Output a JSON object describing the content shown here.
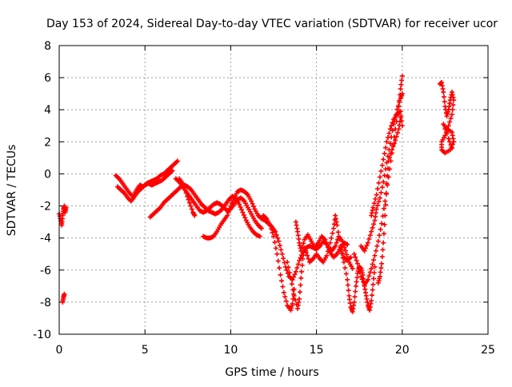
{
  "chart_data": {
    "type": "scatter",
    "title": "Day 153 of 2024, Sidereal Day-to-day VTEC variation (SDTVAR) for receiver ucor",
    "xlabel": "GPS time / hours",
    "ylabel": "SDTVAR / TECUs",
    "xlim": [
      0,
      25
    ],
    "ylim": [
      -10,
      8
    ],
    "x_ticks": [
      "0",
      "5",
      "10",
      "15",
      "20",
      "25"
    ],
    "y_ticks": [
      "-10",
      "-8",
      "-6",
      "-4",
      "-2",
      "0",
      "2",
      "4",
      "6",
      "8"
    ],
    "grid": true,
    "legend": "none",
    "marker": "plus",
    "marker_color": "#ff0000",
    "segments": [
      [
        [
          0.0,
          -2.5
        ],
        [
          0.1,
          -2.9
        ],
        [
          0.15,
          -3.2
        ],
        [
          0.2,
          -2.6
        ],
        [
          0.25,
          -2.2
        ],
        [
          0.3,
          -2.0
        ],
        [
          0.35,
          -2.4
        ],
        [
          0.4,
          -2.1
        ]
      ],
      [
        [
          0.2,
          -8.0
        ],
        [
          0.25,
          -7.7
        ],
        [
          0.3,
          -7.5
        ]
      ],
      [
        [
          3.3,
          -0.1
        ],
        [
          3.5,
          -0.3
        ],
        [
          3.7,
          -0.6
        ],
        [
          3.9,
          -0.9
        ],
        [
          4.1,
          -1.2
        ],
        [
          4.3,
          -1.4
        ],
        [
          4.5,
          -1.0
        ],
        [
          4.7,
          -0.7
        ],
        [
          4.9,
          -0.8
        ],
        [
          5.1,
          -0.6
        ],
        [
          5.3,
          -0.5
        ],
        [
          5.5,
          -0.4
        ],
        [
          5.7,
          -0.3
        ],
        [
          5.9,
          -0.1
        ],
        [
          6.1,
          0.0
        ],
        [
          6.3,
          0.2
        ],
        [
          6.5,
          0.4
        ],
        [
          6.7,
          0.6
        ],
        [
          6.9,
          0.8
        ]
      ],
      [
        [
          3.4,
          -0.8
        ],
        [
          3.6,
          -1.0
        ],
        [
          3.8,
          -1.2
        ],
        [
          4.0,
          -1.5
        ],
        [
          4.2,
          -1.7
        ],
        [
          4.4,
          -1.4
        ],
        [
          4.6,
          -1.1
        ],
        [
          4.8,
          -0.9
        ],
        [
          5.0,
          -0.7
        ],
        [
          5.2,
          -0.6
        ],
        [
          5.4,
          -0.7
        ],
        [
          5.6,
          -0.6
        ],
        [
          5.8,
          -0.5
        ],
        [
          6.0,
          -0.4
        ],
        [
          6.2,
          -0.2
        ],
        [
          6.4,
          0.0
        ],
        [
          6.6,
          0.2
        ]
      ],
      [
        [
          5.3,
          -2.7
        ],
        [
          5.5,
          -2.5
        ],
        [
          5.7,
          -2.3
        ],
        [
          5.9,
          -2.1
        ],
        [
          6.1,
          -1.8
        ],
        [
          6.3,
          -1.6
        ],
        [
          6.5,
          -1.4
        ],
        [
          6.7,
          -1.2
        ],
        [
          6.9,
          -1.0
        ],
        [
          7.1,
          -0.8
        ],
        [
          7.3,
          -0.7
        ],
        [
          7.5,
          -0.8
        ],
        [
          7.7,
          -1.0
        ],
        [
          7.9,
          -1.3
        ],
        [
          8.1,
          -1.6
        ],
        [
          8.3,
          -1.9
        ],
        [
          8.5,
          -2.1
        ],
        [
          8.7,
          -2.3
        ],
        [
          8.9,
          -2.4
        ],
        [
          9.1,
          -2.5
        ],
        [
          9.3,
          -2.4
        ],
        [
          9.5,
          -2.2
        ],
        [
          9.7,
          -1.9
        ],
        [
          9.9,
          -1.6
        ],
        [
          10.1,
          -1.4
        ],
        [
          10.3,
          -1.5
        ],
        [
          10.5,
          -1.9
        ],
        [
          10.7,
          -2.4
        ],
        [
          10.9,
          -2.9
        ],
        [
          11.1,
          -3.3
        ],
        [
          11.3,
          -3.6
        ],
        [
          11.5,
          -3.8
        ],
        [
          11.7,
          -3.9
        ]
      ],
      [
        [
          6.8,
          -0.3
        ],
        [
          7.0,
          -0.5
        ],
        [
          7.2,
          -0.8
        ],
        [
          7.4,
          -1.1
        ],
        [
          7.6,
          -1.4
        ],
        [
          7.8,
          -1.7
        ],
        [
          8.0,
          -2.0
        ],
        [
          8.2,
          -2.3
        ],
        [
          8.4,
          -2.4
        ],
        [
          8.6,
          -2.3
        ],
        [
          8.8,
          -2.1
        ],
        [
          9.0,
          -1.9
        ],
        [
          9.2,
          -1.8
        ],
        [
          9.4,
          -1.9
        ],
        [
          9.6,
          -2.1
        ],
        [
          9.8,
          -2.3
        ],
        [
          10.0,
          -2.2
        ],
        [
          10.2,
          -1.9
        ],
        [
          10.4,
          -1.6
        ],
        [
          10.6,
          -1.5
        ],
        [
          10.8,
          -1.7
        ],
        [
          11.0,
          -2.1
        ],
        [
          11.2,
          -2.5
        ],
        [
          11.4,
          -2.9
        ],
        [
          11.6,
          -3.2
        ],
        [
          11.8,
          -3.4
        ]
      ],
      [
        [
          7.0,
          -0.3
        ],
        [
          7.2,
          -0.6
        ],
        [
          7.4,
          -1.2
        ],
        [
          7.6,
          -1.8
        ],
        [
          7.8,
          -2.4
        ],
        [
          7.9,
          -2.6
        ]
      ],
      [
        [
          8.4,
          -3.9
        ],
        [
          8.6,
          -4.0
        ],
        [
          8.8,
          -4.0
        ],
        [
          9.0,
          -3.9
        ],
        [
          9.2,
          -3.6
        ],
        [
          9.4,
          -3.2
        ],
        [
          9.6,
          -2.9
        ],
        [
          9.8,
          -2.6
        ],
        [
          10.0,
          -2.0
        ],
        [
          10.2,
          -1.5
        ],
        [
          10.4,
          -1.1
        ],
        [
          10.6,
          -1.0
        ],
        [
          10.8,
          -1.1
        ],
        [
          11.0,
          -1.3
        ],
        [
          11.2,
          -1.7
        ],
        [
          11.4,
          -2.2
        ],
        [
          11.6,
          -2.6
        ],
        [
          11.8,
          -2.8
        ],
        [
          12.0,
          -2.9
        ],
        [
          12.2,
          -3.1
        ],
        [
          12.4,
          -3.3
        ],
        [
          12.6,
          -3.6
        ],
        [
          12.8,
          -4.2
        ],
        [
          13.0,
          -5.0
        ],
        [
          13.2,
          -5.8
        ],
        [
          13.4,
          -6.4
        ],
        [
          13.6,
          -6.6
        ],
        [
          13.8,
          -6.1
        ],
        [
          14.0,
          -5.4
        ],
        [
          14.2,
          -4.9
        ],
        [
          14.4,
          -4.6
        ],
        [
          14.6,
          -4.5
        ],
        [
          14.8,
          -4.6
        ],
        [
          15.0,
          -4.7
        ],
        [
          15.2,
          -4.5
        ],
        [
          15.4,
          -4.2
        ],
        [
          15.6,
          -4.4
        ],
        [
          15.8,
          -4.9
        ],
        [
          16.0,
          -5.2
        ],
        [
          16.2,
          -5.0
        ],
        [
          16.4,
          -4.6
        ],
        [
          16.6,
          -4.3
        ],
        [
          16.8,
          -4.4
        ]
      ],
      [
        [
          11.9,
          -2.6
        ],
        [
          12.1,
          -2.8
        ],
        [
          12.3,
          -3.2
        ],
        [
          12.5,
          -3.9
        ],
        [
          12.7,
          -5.0
        ],
        [
          12.9,
          -6.3
        ],
        [
          13.1,
          -7.4
        ],
        [
          13.3,
          -8.2
        ],
        [
          13.5,
          -8.5
        ],
        [
          13.6,
          -8.1
        ],
        [
          13.7,
          -7.2
        ]
      ],
      [
        [
          13.3,
          -5.5
        ],
        [
          13.5,
          -6.5
        ],
        [
          13.7,
          -7.6
        ],
        [
          13.9,
          -8.4
        ],
        [
          14.0,
          -7.8
        ],
        [
          14.1,
          -6.5
        ],
        [
          14.2,
          -5.3
        ],
        [
          14.3,
          -4.6
        ],
        [
          14.4,
          -4.9
        ],
        [
          14.6,
          -5.5
        ],
        [
          14.8,
          -5.3
        ],
        [
          15.0,
          -5.0
        ],
        [
          15.2,
          -5.3
        ],
        [
          15.4,
          -5.5
        ],
        [
          15.6,
          -5.1
        ],
        [
          15.8,
          -4.3
        ],
        [
          16.0,
          -3.4
        ],
        [
          16.1,
          -2.6
        ],
        [
          16.2,
          -3.2
        ],
        [
          16.4,
          -4.5
        ],
        [
          16.6,
          -5.2
        ],
        [
          16.8,
          -5.4
        ],
        [
          17.0,
          -5.2
        ]
      ],
      [
        [
          13.8,
          -3.0
        ],
        [
          13.9,
          -3.6
        ],
        [
          14.0,
          -4.3
        ],
        [
          14.1,
          -4.8
        ],
        [
          14.3,
          -4.1
        ],
        [
          14.5,
          -3.8
        ],
        [
          14.7,
          -4.2
        ],
        [
          14.9,
          -4.6
        ],
        [
          15.1,
          -4.3
        ],
        [
          15.3,
          -3.9
        ],
        [
          15.5,
          -4.1
        ],
        [
          15.7,
          -4.6
        ],
        [
          15.9,
          -4.8
        ],
        [
          16.1,
          -4.5
        ],
        [
          16.3,
          -3.9
        ],
        [
          16.5,
          -4.2
        ],
        [
          16.7,
          -4.8
        ],
        [
          16.9,
          -5.5
        ],
        [
          17.1,
          -5.9
        ]
      ],
      [
        [
          16.4,
          -4.7
        ],
        [
          16.6,
          -5.5
        ],
        [
          16.8,
          -6.6
        ],
        [
          16.9,
          -7.6
        ],
        [
          17.0,
          -8.3
        ],
        [
          17.1,
          -8.6
        ],
        [
          17.2,
          -8.0
        ],
        [
          17.3,
          -7.0
        ],
        [
          17.4,
          -6.2
        ],
        [
          17.5,
          -5.8
        ],
        [
          17.6,
          -5.9
        ],
        [
          17.7,
          -6.3
        ],
        [
          17.8,
          -7.0
        ],
        [
          17.9,
          -7.6
        ],
        [
          18.0,
          -8.2
        ],
        [
          18.1,
          -8.5
        ],
        [
          18.2,
          -7.9
        ],
        [
          18.3,
          -6.9
        ],
        [
          18.4,
          -5.8
        ]
      ],
      [
        [
          17.2,
          -5.0
        ],
        [
          17.4,
          -5.6
        ],
        [
          17.6,
          -6.4
        ],
        [
          17.8,
          -6.9
        ],
        [
          18.0,
          -6.6
        ],
        [
          18.2,
          -5.9
        ],
        [
          18.4,
          -5.1
        ],
        [
          18.6,
          -4.2
        ],
        [
          18.8,
          -3.1
        ],
        [
          19.0,
          -1.7
        ],
        [
          19.2,
          -0.2
        ],
        [
          19.4,
          1.3
        ],
        [
          19.6,
          2.8
        ],
        [
          19.8,
          4.2
        ],
        [
          19.9,
          5.3
        ],
        [
          20.0,
          6.1
        ]
      ],
      [
        [
          17.6,
          -4.5
        ],
        [
          17.8,
          -4.8
        ],
        [
          18.0,
          -4.3
        ],
        [
          18.2,
          -3.6
        ],
        [
          18.4,
          -2.9
        ],
        [
          18.5,
          -2.2
        ],
        [
          18.7,
          -1.5
        ],
        [
          18.9,
          -0.5
        ],
        [
          19.1,
          0.7
        ],
        [
          19.3,
          1.9
        ],
        [
          19.5,
          3.1
        ],
        [
          19.7,
          4.0
        ],
        [
          19.9,
          4.7
        ],
        [
          20.0,
          5.0
        ]
      ],
      [
        [
          18.2,
          -2.6
        ],
        [
          18.3,
          -2.1
        ],
        [
          18.5,
          -1.3
        ],
        [
          18.7,
          -0.2
        ],
        [
          18.9,
          0.9
        ],
        [
          19.1,
          2.0
        ],
        [
          19.3,
          2.8
        ],
        [
          19.5,
          3.4
        ],
        [
          19.7,
          3.7
        ],
        [
          19.9,
          3.9
        ],
        [
          20.0,
          3.0
        ]
      ],
      [
        [
          18.6,
          -6.8
        ],
        [
          18.7,
          -6.4
        ],
        [
          18.8,
          -5.6
        ],
        [
          18.9,
          -4.3
        ],
        [
          19.0,
          -2.6
        ],
        [
          19.1,
          -0.6
        ],
        [
          19.2,
          0.8
        ],
        [
          19.4,
          1.5
        ],
        [
          19.6,
          2.1
        ],
        [
          19.8,
          2.8
        ],
        [
          19.9,
          3.5
        ]
      ],
      [
        [
          22.2,
          5.6
        ],
        [
          22.3,
          5.7
        ],
        [
          22.4,
          5.1
        ],
        [
          22.5,
          4.2
        ],
        [
          22.6,
          3.6
        ],
        [
          22.7,
          4.0
        ],
        [
          22.8,
          4.6
        ],
        [
          22.9,
          5.1
        ],
        [
          23.0,
          4.6
        ],
        [
          22.9,
          3.7
        ],
        [
          22.7,
          3.0
        ],
        [
          22.5,
          2.4
        ],
        [
          22.3,
          2.0
        ],
        [
          22.3,
          1.5
        ],
        [
          22.5,
          1.3
        ],
        [
          22.8,
          1.5
        ],
        [
          23.0,
          2.0
        ],
        [
          22.9,
          2.6
        ],
        [
          22.6,
          2.8
        ],
        [
          22.4,
          3.1
        ],
        [
          22.7,
          2.2
        ],
        [
          22.9,
          1.6
        ]
      ]
    ]
  }
}
